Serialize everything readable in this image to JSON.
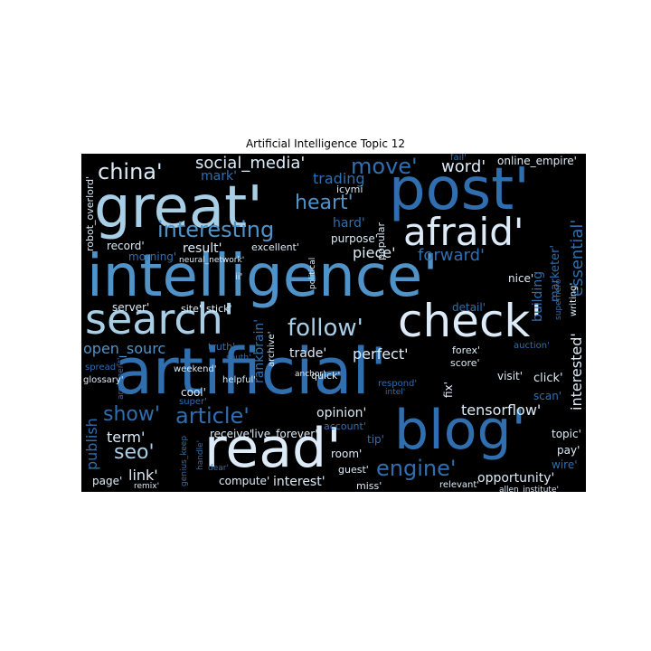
{
  "title": "Artificial Intelligence Topic 12",
  "colors": {
    "background": "#000000",
    "light": "#dcebf7",
    "pale": "#a9cfe6",
    "mid": "#4f93c8",
    "deep": "#2f6fb0",
    "dark": "#1c4f8a"
  },
  "words": [
    {
      "text": "intelligence'",
      "color": "mid"
    },
    {
      "text": "artificial'",
      "color": "deep"
    },
    {
      "text": "great'",
      "color": "pale"
    },
    {
      "text": "post'",
      "color": "deep"
    },
    {
      "text": "blog'",
      "color": "deep"
    },
    {
      "text": "read'",
      "color": "light"
    },
    {
      "text": "check'",
      "color": "light"
    },
    {
      "text": "search'",
      "color": "pale"
    },
    {
      "text": "afraid'",
      "color": "light"
    },
    {
      "text": "follow'",
      "color": "pale"
    },
    {
      "text": "china'",
      "color": "light"
    },
    {
      "text": "social_media'",
      "color": "light"
    },
    {
      "text": "move'",
      "color": "deep"
    },
    {
      "text": "word'",
      "color": "light"
    },
    {
      "text": "heart'",
      "color": "mid"
    },
    {
      "text": "interesting",
      "color": "mid"
    },
    {
      "text": "trading",
      "color": "deep"
    },
    {
      "text": "icymi",
      "color": "light"
    },
    {
      "text": "mark'",
      "color": "deep"
    },
    {
      "text": "online_empire'",
      "color": "light"
    },
    {
      "text": "hard'",
      "color": "deep"
    },
    {
      "text": "forward'",
      "color": "deep"
    },
    {
      "text": "essential'",
      "color": "deep"
    },
    {
      "text": "popular",
      "color": "light"
    },
    {
      "text": "purpose'",
      "color": "light"
    },
    {
      "text": "result'",
      "color": "light"
    },
    {
      "text": "excellent'",
      "color": "light"
    },
    {
      "text": "piece'",
      "color": "light"
    },
    {
      "text": "nice'",
      "color": "light"
    },
    {
      "text": "record'",
      "color": "light"
    },
    {
      "text": "morning'",
      "color": "deep"
    },
    {
      "text": "neural_network'",
      "color": "light"
    },
    {
      "text": "robot_overlord'",
      "color": "light"
    },
    {
      "text": "ii'",
      "color": "light"
    },
    {
      "text": "political",
      "color": "light"
    },
    {
      "text": "building",
      "color": "deep"
    },
    {
      "text": "marketer'",
      "color": "deep"
    },
    {
      "text": "detail'",
      "color": "deep"
    },
    {
      "text": "server'",
      "color": "light"
    },
    {
      "text": "site'",
      "color": "light"
    },
    {
      "text": "stick'",
      "color": "light"
    },
    {
      "text": "superhero",
      "color": "deep"
    },
    {
      "text": "writing'",
      "color": "light"
    },
    {
      "text": "open_sourc",
      "color": "mid"
    },
    {
      "text": "truth'",
      "color": "deep"
    },
    {
      "text": "trade'",
      "color": "light"
    },
    {
      "text": "anchor'",
      "color": "light"
    },
    {
      "text": "archive'",
      "color": "light"
    },
    {
      "text": "rankbrain'",
      "color": "deep"
    },
    {
      "text": "perfect'",
      "color": "light"
    },
    {
      "text": "forex'",
      "color": "light"
    },
    {
      "text": "auction'",
      "color": "deep"
    },
    {
      "text": "score'",
      "color": "light"
    },
    {
      "text": "spread'",
      "color": "deep"
    },
    {
      "text": "south'",
      "color": "deep"
    },
    {
      "text": "weekend'",
      "color": "light"
    },
    {
      "text": "argument'",
      "color": "deep"
    },
    {
      "text": "helpful'",
      "color": "light"
    },
    {
      "text": "quick'",
      "color": "light"
    },
    {
      "text": "visit'",
      "color": "light"
    },
    {
      "text": "click'",
      "color": "light"
    },
    {
      "text": "glossary'",
      "color": "light"
    },
    {
      "text": "cool'",
      "color": "light"
    },
    {
      "text": "respond'",
      "color": "deep"
    },
    {
      "text": "fix'",
      "color": "light"
    },
    {
      "text": "scan'",
      "color": "deep"
    },
    {
      "text": "intel'",
      "color": "deep"
    },
    {
      "text": "interested'",
      "color": "light"
    },
    {
      "text": "super'",
      "color": "deep"
    },
    {
      "text": "publish",
      "color": "deep"
    },
    {
      "text": "show'",
      "color": "deep"
    },
    {
      "text": "article'",
      "color": "deep"
    },
    {
      "text": "opinion'",
      "color": "light"
    },
    {
      "text": "tensorflow'",
      "color": "light"
    },
    {
      "text": "account'",
      "color": "deep"
    },
    {
      "text": "term'",
      "color": "light"
    },
    {
      "text": "receive'",
      "color": "light"
    },
    {
      "text": "live_forever'",
      "color": "light"
    },
    {
      "text": "tip'",
      "color": "deep"
    },
    {
      "text": "topic'",
      "color": "light"
    },
    {
      "text": "pay'",
      "color": "light"
    },
    {
      "text": "seo'",
      "color": "pale"
    },
    {
      "text": "genius_keep",
      "color": "deep"
    },
    {
      "text": "handle'",
      "color": "deep"
    },
    {
      "text": "wire'",
      "color": "deep"
    },
    {
      "text": "engine'",
      "color": "deep"
    },
    {
      "text": "room'",
      "color": "light"
    },
    {
      "text": "guest'",
      "color": "light"
    },
    {
      "text": "link'",
      "color": "light"
    },
    {
      "text": "dear'",
      "color": "deep"
    },
    {
      "text": "page'",
      "color": "light"
    },
    {
      "text": "compute'",
      "color": "light"
    },
    {
      "text": "interest'",
      "color": "light"
    },
    {
      "text": "opportunity'",
      "color": "light"
    },
    {
      "text": "remix'",
      "color": "light"
    },
    {
      "text": "miss'",
      "color": "light"
    },
    {
      "text": "relevant'",
      "color": "light"
    },
    {
      "text": "allen_institute'",
      "color": "light"
    },
    {
      "text": "fail'",
      "color": "deep"
    }
  ]
}
